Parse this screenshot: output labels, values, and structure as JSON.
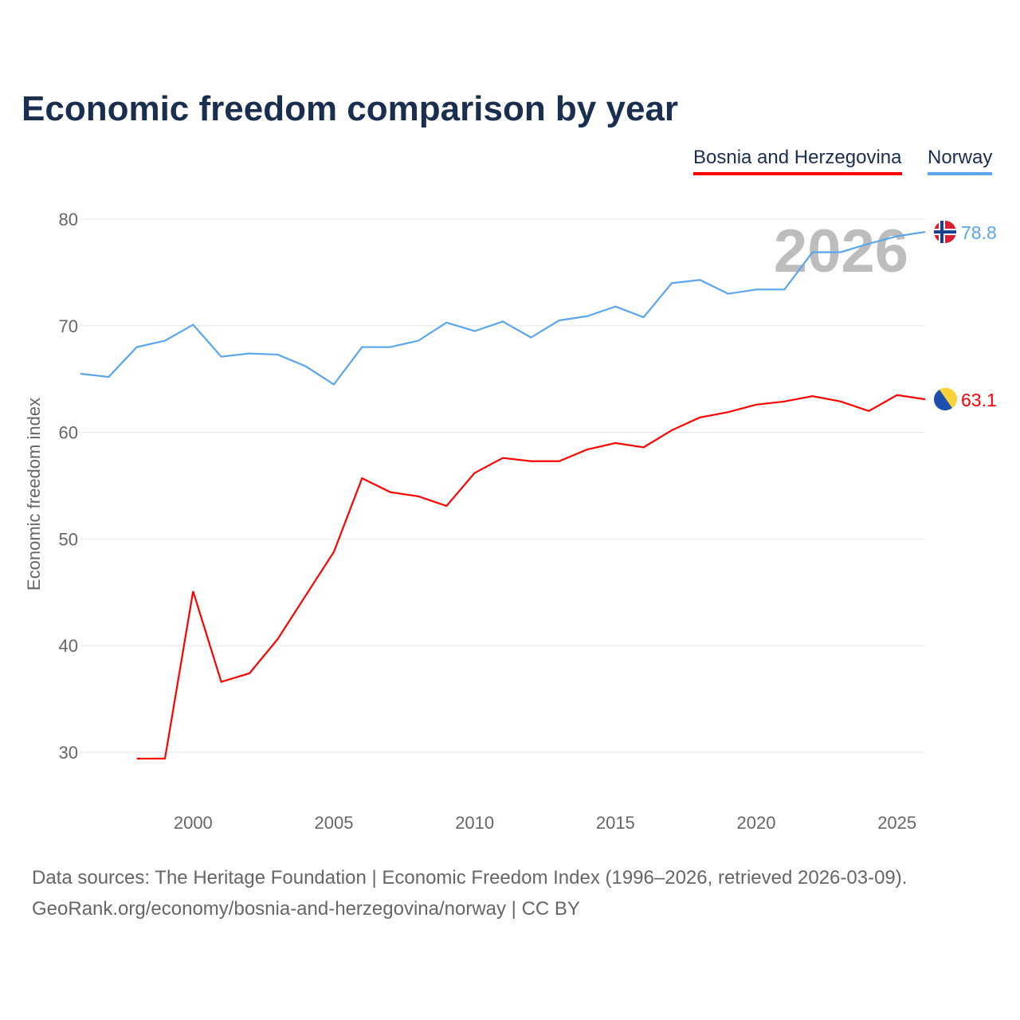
{
  "title": "Economic freedom comparison by year",
  "colors": {
    "bosnia": "#ff0000",
    "norway": "#5aa5ee"
  },
  "chart_data": {
    "type": "line",
    "title": "Economic freedom comparison by year",
    "xlabel": "",
    "ylabel": "Economic freedom index",
    "xlim": [
      1996,
      2026
    ],
    "ylim": [
      30,
      80
    ],
    "xticks": [
      "2000",
      "2005",
      "2010",
      "2015",
      "2020",
      "2025"
    ],
    "yticks": [
      "30",
      "40",
      "50",
      "60",
      "70",
      "80"
    ],
    "year_watermark": "2026",
    "legend": [
      "Bosnia and Herzegovina",
      "Norway"
    ],
    "legend_position": "top-right",
    "grid": true,
    "series": [
      {
        "name": "Bosnia and Herzegovina",
        "color": "#ff0000",
        "end_label": "63.1",
        "x": [
          1998,
          1999,
          2000,
          2001,
          2002,
          2003,
          2004,
          2005,
          2006,
          2007,
          2008,
          2009,
          2010,
          2011,
          2012,
          2013,
          2014,
          2015,
          2016,
          2017,
          2018,
          2019,
          2020,
          2021,
          2022,
          2023,
          2024,
          2025,
          2026
        ],
        "values": [
          29.4,
          29.4,
          45.1,
          36.6,
          37.4,
          40.6,
          44.7,
          48.8,
          55.7,
          54.4,
          54.0,
          53.1,
          56.2,
          57.6,
          57.3,
          57.3,
          58.4,
          59.0,
          58.6,
          60.2,
          61.4,
          61.9,
          62.6,
          62.9,
          63.4,
          62.9,
          62.0,
          63.5,
          63.1
        ]
      },
      {
        "name": "Norway",
        "color": "#5aa5ee",
        "end_label": "78.8",
        "x": [
          1996,
          1997,
          1998,
          1999,
          2000,
          2001,
          2002,
          2003,
          2004,
          2005,
          2006,
          2007,
          2008,
          2009,
          2010,
          2011,
          2012,
          2013,
          2014,
          2015,
          2016,
          2017,
          2018,
          2019,
          2020,
          2021,
          2022,
          2023,
          2024,
          2025,
          2026
        ],
        "values": [
          65.5,
          65.2,
          68.0,
          68.6,
          70.1,
          67.1,
          67.4,
          67.3,
          66.2,
          64.5,
          68.0,
          68.0,
          68.6,
          70.3,
          69.5,
          70.4,
          68.9,
          70.5,
          70.9,
          71.8,
          70.8,
          74.0,
          74.3,
          73.0,
          73.4,
          73.4,
          76.9,
          76.9,
          77.7,
          78.4,
          78.8
        ]
      }
    ]
  },
  "source_line1": "Data sources: The Heritage Foundation | Economic Freedom Index (1996–2026, retrieved 2026-03-09).",
  "source_line2": "GeoRank.org/economy/bosnia-and-herzegovina/norway | CC BY"
}
